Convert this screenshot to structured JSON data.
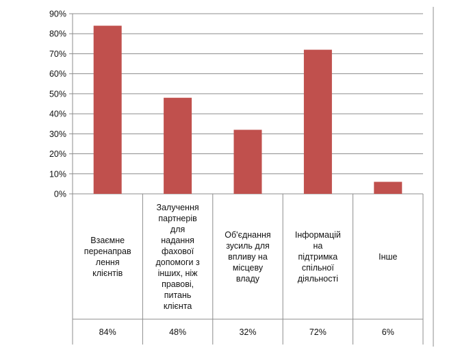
{
  "chart_data": {
    "type": "bar",
    "categories": [
      "Взаємне перенаправ лення клієнтів",
      "Залучення партнерів для надання фахової допомоги з інших, ніж правові, питань клієнта",
      "Об'єднання зусиль для впливу на місцеву владу",
      "Інформацій на підтримка спільної діяльності",
      "Інше"
    ],
    "category_lines": [
      [
        "Взаємне",
        "перенаправ",
        "лення",
        "клієнтів"
      ],
      [
        "Залучення",
        "партнерів",
        "для",
        "надання",
        "фахової",
        "допомоги з",
        "інших, ніж",
        "правові,",
        "питань",
        "клієнта"
      ],
      [
        "Об'єднання",
        "зусиль для",
        "впливу на",
        "місцеву",
        "владу"
      ],
      [
        "Інформацій",
        "на",
        "підтримка",
        "спільної",
        "діяльності"
      ],
      [
        "Інше"
      ]
    ],
    "values": [
      84,
      48,
      32,
      72,
      6
    ],
    "value_labels": [
      "84%",
      "48%",
      "32%",
      "72%",
      "6%"
    ],
    "y_ticks": [
      "0%",
      "10%",
      "20%",
      "30%",
      "40%",
      "50%",
      "60%",
      "70%",
      "80%",
      "90%"
    ],
    "ylim": [
      0,
      90
    ],
    "grid": true,
    "bar_color": "#c0504d",
    "title": "",
    "xlabel": "",
    "ylabel": ""
  }
}
